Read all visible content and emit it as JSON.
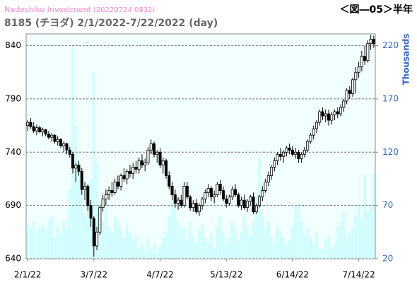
{
  "chart_data": {
    "type": "candlestick",
    "source": "Nadeshiko Investment",
    "timestamp": "(20220724 0832)",
    "title": "8185 (チヨダ) 2/1/2022-7/22/2022 (day)",
    "figure_label": "＜図―05＞半年",
    "y2_label": "Thousands",
    "categories": [
      "2/1/22",
      null,
      null,
      null,
      null,
      null,
      null,
      null,
      null,
      null,
      null,
      null,
      null,
      null,
      null,
      null,
      null,
      null,
      null,
      null,
      null,
      null,
      "3/7/22",
      null,
      null,
      null,
      null,
      null,
      null,
      null,
      null,
      null,
      null,
      null,
      null,
      null,
      null,
      null,
      null,
      null,
      null,
      null,
      null,
      null,
      "4/7/22",
      null,
      null,
      null,
      null,
      null,
      null,
      null,
      null,
      null,
      null,
      null,
      null,
      null,
      null,
      null,
      null,
      null,
      null,
      null,
      null,
      null,
      "5/13/22",
      null,
      null,
      null,
      null,
      null,
      null,
      null,
      null,
      null,
      null,
      null,
      null,
      null,
      null,
      null,
      null,
      null,
      null,
      null,
      null,
      null,
      "6/14/22",
      null,
      null,
      null,
      null,
      null,
      null,
      null,
      null,
      null,
      null,
      null,
      null,
      null,
      null,
      null,
      null,
      null,
      null,
      null,
      null,
      null,
      "7/14/22",
      null,
      null,
      null,
      null,
      null
    ],
    "ohlc": [
      [
        765,
        770,
        760,
        768
      ],
      [
        768,
        772,
        762,
        764
      ],
      [
        764,
        768,
        758,
        760
      ],
      [
        760,
        766,
        756,
        763
      ],
      [
        763,
        765,
        758,
        759
      ],
      [
        759,
        763,
        755,
        761
      ],
      [
        761,
        762,
        755,
        757
      ],
      [
        757,
        760,
        752,
        754
      ],
      [
        754,
        758,
        750,
        756
      ],
      [
        756,
        757,
        748,
        750
      ],
      [
        750,
        755,
        746,
        752
      ],
      [
        752,
        753,
        744,
        746
      ],
      [
        746,
        750,
        740,
        748
      ],
      [
        748,
        749,
        738,
        742
      ],
      [
        742,
        745,
        735,
        738
      ],
      [
        738,
        740,
        720,
        725
      ],
      [
        725,
        730,
        712,
        728
      ],
      [
        728,
        732,
        718,
        722
      ],
      [
        722,
        725,
        700,
        705
      ],
      [
        705,
        712,
        695,
        708
      ],
      [
        708,
        710,
        685,
        690
      ],
      [
        690,
        695,
        670,
        678
      ],
      [
        678,
        680,
        642,
        652
      ],
      [
        652,
        670,
        648,
        665
      ],
      [
        665,
        690,
        662,
        688
      ],
      [
        688,
        700,
        684,
        696
      ],
      [
        696,
        705,
        690,
        700
      ],
      [
        700,
        708,
        695,
        704
      ],
      [
        704,
        712,
        698,
        702
      ],
      [
        702,
        715,
        700,
        712
      ],
      [
        712,
        718,
        705,
        708
      ],
      [
        708,
        720,
        704,
        718
      ],
      [
        718,
        725,
        712,
        715
      ],
      [
        715,
        724,
        710,
        722
      ],
      [
        722,
        728,
        716,
        720
      ],
      [
        720,
        730,
        715,
        726
      ],
      [
        726,
        732,
        720,
        724
      ],
      [
        724,
        735,
        720,
        732
      ],
      [
        732,
        738,
        725,
        728
      ],
      [
        728,
        734,
        722,
        730
      ],
      [
        730,
        745,
        728,
        742
      ],
      [
        742,
        752,
        738,
        748
      ],
      [
        748,
        750,
        735,
        738
      ],
      [
        738,
        742,
        730,
        740
      ],
      [
        740,
        744,
        725,
        728
      ],
      [
        728,
        735,
        720,
        732
      ],
      [
        732,
        734,
        715,
        718
      ],
      [
        718,
        722,
        705,
        708
      ],
      [
        708,
        712,
        695,
        700
      ],
      [
        700,
        705,
        688,
        692
      ],
      [
        692,
        698,
        686,
        695
      ],
      [
        695,
        700,
        688,
        690
      ],
      [
        690,
        712,
        688,
        708
      ],
      [
        708,
        712,
        696,
        698
      ],
      [
        698,
        700,
        685,
        688
      ],
      [
        688,
        695,
        684,
        692
      ],
      [
        692,
        696,
        682,
        684
      ],
      [
        684,
        692,
        680,
        690
      ],
      [
        690,
        698,
        686,
        696
      ],
      [
        696,
        705,
        692,
        702
      ],
      [
        702,
        710,
        698,
        706
      ],
      [
        706,
        708,
        694,
        698
      ],
      [
        698,
        704,
        692,
        700
      ],
      [
        700,
        712,
        698,
        710
      ],
      [
        710,
        714,
        700,
        704
      ],
      [
        704,
        708,
        694,
        696
      ],
      [
        696,
        700,
        688,
        692
      ],
      [
        692,
        700,
        690,
        698
      ],
      [
        698,
        708,
        695,
        705
      ],
      [
        705,
        710,
        698,
        700
      ],
      [
        700,
        702,
        688,
        690
      ],
      [
        690,
        698,
        686,
        695
      ],
      [
        695,
        700,
        686,
        688
      ],
      [
        688,
        696,
        684,
        694
      ],
      [
        694,
        700,
        690,
        698
      ],
      [
        698,
        702,
        682,
        684
      ],
      [
        684,
        692,
        682,
        690
      ],
      [
        690,
        700,
        688,
        698
      ],
      [
        698,
        708,
        694,
        704
      ],
      [
        704,
        715,
        702,
        712
      ],
      [
        712,
        722,
        708,
        718
      ],
      [
        718,
        728,
        714,
        726
      ],
      [
        726,
        735,
        722,
        732
      ],
      [
        732,
        740,
        728,
        738
      ],
      [
        738,
        744,
        732,
        736
      ],
      [
        736,
        742,
        730,
        740
      ],
      [
        740,
        746,
        736,
        744
      ],
      [
        744,
        748,
        738,
        742
      ],
      [
        742,
        746,
        736,
        738
      ],
      [
        738,
        744,
        734,
        740
      ],
      [
        740,
        742,
        730,
        734
      ],
      [
        734,
        740,
        730,
        738
      ],
      [
        738,
        745,
        735,
        742
      ],
      [
        742,
        752,
        740,
        750
      ],
      [
        750,
        758,
        748,
        756
      ],
      [
        756,
        765,
        752,
        762
      ],
      [
        762,
        770,
        758,
        768
      ],
      [
        768,
        780,
        765,
        778
      ],
      [
        778,
        782,
        770,
        774
      ],
      [
        774,
        780,
        768,
        776
      ],
      [
        776,
        780,
        765,
        770
      ],
      [
        770,
        778,
        766,
        775
      ],
      [
        775,
        780,
        770,
        778
      ],
      [
        778,
        782,
        772,
        776
      ],
      [
        776,
        785,
        774,
        782
      ],
      [
        782,
        790,
        778,
        788
      ],
      [
        788,
        800,
        785,
        798
      ],
      [
        798,
        802,
        790,
        795
      ],
      [
        795,
        810,
        792,
        808
      ],
      [
        808,
        820,
        795,
        815
      ],
      [
        815,
        825,
        810,
        820
      ],
      [
        820,
        835,
        816,
        830
      ],
      [
        830,
        840,
        822,
        826
      ],
      [
        826,
        845,
        824,
        842
      ],
      [
        842,
        850,
        836,
        846
      ],
      [
        846,
        849,
        838,
        842
      ]
    ],
    "volume": [
      52,
      48,
      55,
      45,
      50,
      52,
      48,
      56,
      60,
      40,
      50,
      44,
      55,
      48,
      85,
      218,
      145,
      110,
      90,
      60,
      70,
      95,
      195,
      110,
      60,
      55,
      72,
      50,
      45,
      60,
      55,
      48,
      40,
      52,
      45,
      38,
      42,
      30,
      35,
      28,
      40,
      30,
      35,
      25,
      32,
      40,
      45,
      60,
      75,
      70,
      55,
      48,
      50,
      38,
      55,
      42,
      35,
      48,
      52,
      40,
      36,
      44,
      30,
      50,
      60,
      45,
      35,
      40,
      55,
      50,
      38,
      45,
      60,
      50,
      42,
      55,
      80,
      115,
      60,
      48,
      55,
      40,
      35,
      50,
      45,
      40,
      32,
      38,
      50,
      70,
      72,
      55,
      42,
      48,
      40,
      35,
      45,
      30,
      28,
      38,
      42,
      30,
      35,
      50,
      55,
      65,
      40,
      45,
      50,
      60,
      70,
      55,
      100,
      65,
      70,
      100
    ],
    "up_color": "#ffffff",
    "down_color": "#000000",
    "volume_color": "#ccffff",
    "ylim": [
      640,
      851
    ],
    "yticks": [
      640,
      690,
      740,
      790,
      840
    ],
    "y2lim": [
      20,
      231
    ],
    "y2ticks": [
      20,
      70,
      120,
      170,
      220
    ],
    "grid": true
  }
}
